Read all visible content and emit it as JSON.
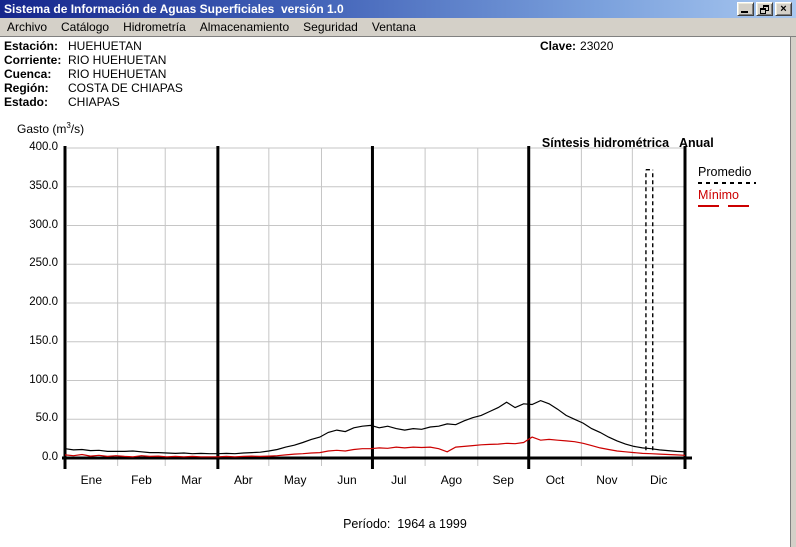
{
  "window": {
    "title": "Sistema de Información de Aguas Superficiales  versión 1.0",
    "controls": {
      "minimize": "minimize",
      "restore": "restore",
      "close": "close"
    }
  },
  "menu": {
    "items": [
      "Archivo",
      "Catálogo",
      "Hidrometría",
      "Almacenamiento",
      "Seguridad",
      "Ventana"
    ]
  },
  "station": {
    "fields": [
      {
        "label": "Estación:",
        "value": "HUEHUETAN"
      },
      {
        "label": "Corriente:",
        "value": "RIO HUEHUETAN"
      },
      {
        "label": "Cuenca:",
        "value": "RIO HUEHUETAN"
      },
      {
        "label": "Región:",
        "value": "COSTA DE CHIAPAS"
      },
      {
        "label": "Estado:",
        "value": "CHIAPAS"
      }
    ],
    "clave_label": "Clave:",
    "clave_value": "23020"
  },
  "chart_data": {
    "type": "line",
    "title": "Síntesis hidrométrica",
    "title2": "Anual",
    "ylabel": {
      "pre": "Gasto (m",
      "sup": "3",
      "post": "/s)"
    },
    "period_label": "Período:",
    "period_value": "1964 a 1999",
    "ylim": [
      0,
      400
    ],
    "y_ticks": [
      0,
      50,
      100,
      150,
      200,
      250,
      300,
      350,
      400
    ],
    "y_tick_labels": [
      "0.0",
      "50.0",
      "100.0",
      "150.0",
      "200.0",
      "250.0",
      "300.0",
      "350.0",
      "400.0"
    ],
    "categories": [
      "Ene",
      "Feb",
      "Mar",
      "Abr",
      "May",
      "Jun",
      "Jul",
      "Ago",
      "Sep",
      "Oct",
      "Nov",
      "Dic"
    ],
    "month_start_days": [
      0,
      31,
      59,
      90,
      120,
      151,
      181,
      212,
      243,
      273,
      304,
      334,
      365
    ],
    "quarter_days": [
      0,
      90,
      181,
      273,
      365
    ],
    "grid": true,
    "legend_position": "right-outside",
    "legend": [
      {
        "name": "Promedio",
        "color": "#000000",
        "sample": "dashed-short"
      },
      {
        "name": "Mínimo",
        "color": "#cc0000",
        "sample": "dashed-long"
      }
    ],
    "day_step": 5,
    "series": [
      {
        "name": "Promedio",
        "color": "#000000",
        "values": [
          12,
          10.5,
          11,
          9.5,
          10,
          8.5,
          8.5,
          8.5,
          9,
          8,
          7,
          7,
          6.5,
          6,
          6.5,
          5.5,
          6,
          5.5,
          5.5,
          6,
          5.5,
          6.5,
          7,
          7.5,
          9,
          11,
          14,
          16.5,
          20,
          24,
          27,
          33,
          36,
          34,
          39,
          41,
          42,
          39,
          41,
          38,
          36,
          38,
          37,
          40,
          41,
          44,
          43,
          48,
          52,
          55,
          60,
          65,
          72,
          65,
          70,
          69,
          74,
          70,
          63,
          55,
          50,
          45,
          38,
          33,
          27,
          22,
          18,
          15,
          13,
          12,
          10.5,
          9.5,
          8.5,
          8
        ]
      },
      {
        "name": "Mínimo",
        "color": "#cc0000",
        "values": [
          4,
          3,
          4.5,
          2.5,
          3.5,
          2,
          3,
          2,
          1.5,
          3,
          2,
          2.5,
          1.5,
          2,
          1.5,
          2,
          1.5,
          1.5,
          1.5,
          2,
          1.5,
          2,
          2.5,
          2,
          2.5,
          3,
          4,
          5,
          5.5,
          6.5,
          7,
          9,
          10,
          9,
          11,
          12,
          12,
          13,
          12.5,
          14,
          13,
          14,
          13.5,
          14,
          12,
          8,
          14,
          15,
          16,
          17,
          17.5,
          18,
          19,
          18.5,
          20,
          27,
          23,
          24,
          23,
          22,
          21,
          19,
          16,
          13,
          11,
          9,
          8,
          7,
          6,
          5.5,
          5,
          4.5,
          4,
          3.5
        ]
      }
    ],
    "max_spike": {
      "day": 342,
      "width_days": 4,
      "top": 372,
      "base": 10,
      "style": "dashed",
      "color": "#000000"
    }
  }
}
